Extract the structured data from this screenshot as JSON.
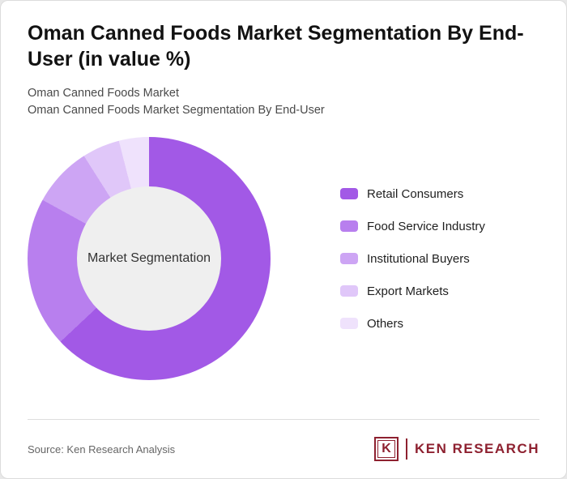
{
  "header": {
    "title": "Oman Canned Foods Market Segmentation By End-User (in value %)",
    "subtitle1": "Oman Canned Foods Market",
    "subtitle2": "Oman Canned Foods Market Segmentation By End-User"
  },
  "chart_data": {
    "type": "pie",
    "donut": true,
    "title": "Oman Canned Foods Market Segmentation By End-User (in value %)",
    "center_label": "Market Segmentation",
    "legend_position": "right",
    "start_angle_deg": 0,
    "direction": "clockwise",
    "series": [
      {
        "name": "Retail Consumers",
        "value": 63,
        "color": "#a259e6"
      },
      {
        "name": "Food Service Industry",
        "value": 20,
        "color": "#b87fee"
      },
      {
        "name": "Institutional Buyers",
        "value": 8,
        "color": "#cda5f4"
      },
      {
        "name": "Export Markets",
        "value": 5,
        "color": "#e0c7f9"
      },
      {
        "name": "Others",
        "value": 4,
        "color": "#efe2fc"
      }
    ]
  },
  "footer": {
    "source": "Source: Ken Research Analysis",
    "logo": {
      "mark": "K",
      "text": "KEN RESEARCH",
      "color": "#8e2130"
    }
  }
}
